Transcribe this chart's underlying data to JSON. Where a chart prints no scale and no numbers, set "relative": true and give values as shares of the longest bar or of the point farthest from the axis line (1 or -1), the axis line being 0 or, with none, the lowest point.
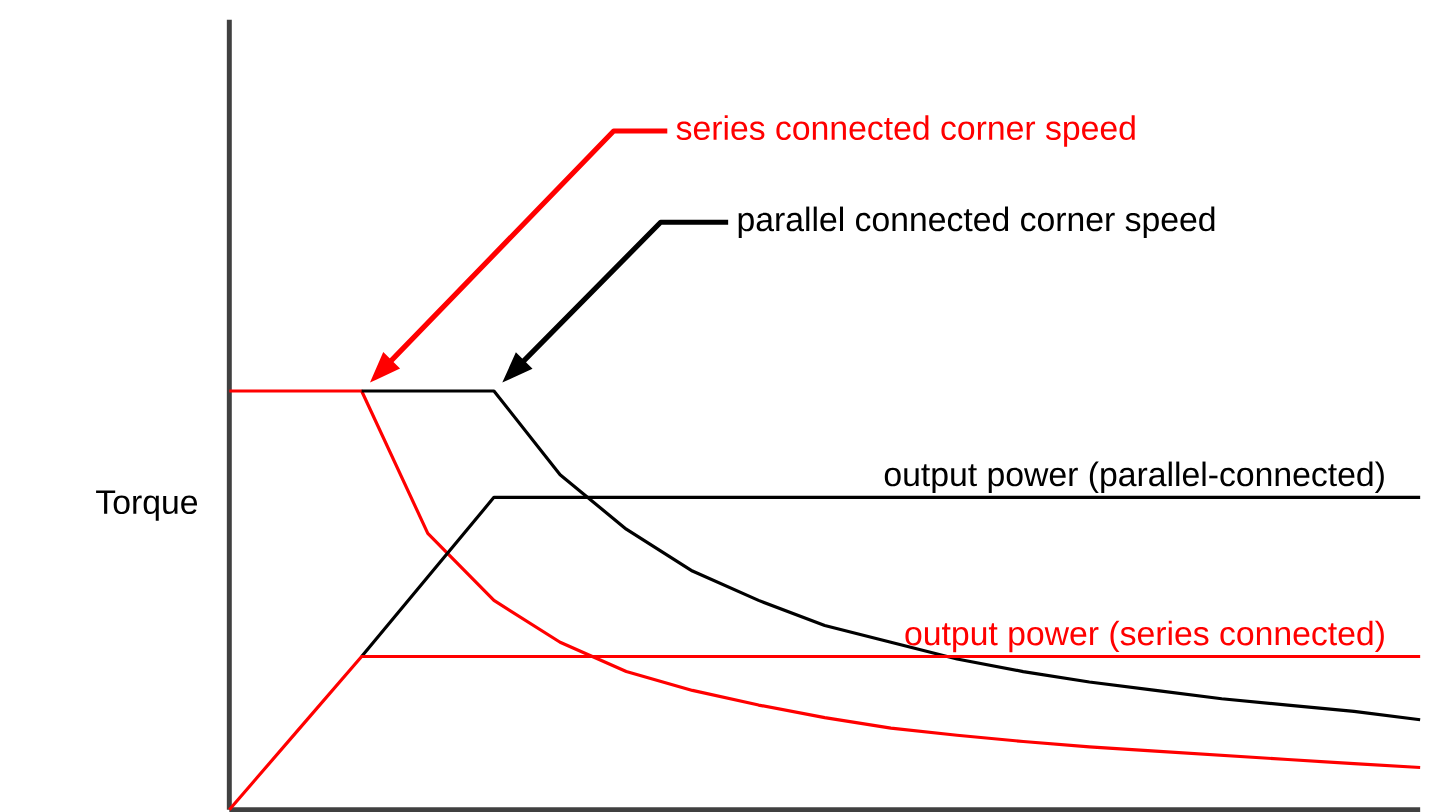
{
  "chart_data": {
    "type": "line",
    "relative": true,
    "ylabel": "Torque",
    "legend": false,
    "marker": "none",
    "line_style": "solid",
    "categories": [
      null,
      null,
      null,
      null,
      null,
      null,
      null,
      null,
      null,
      null,
      null,
      null,
      null,
      null,
      null,
      null,
      null,
      null,
      null
    ],
    "series": [
      {
        "color": "#ff0000",
        "values": [
          1,
          1,
          1,
          0.66,
          0.5,
          0.4,
          0.33,
          0.285,
          0.25,
          0.22,
          0.195,
          0.178,
          0.163,
          0.15,
          0.14,
          0.13,
          0.12,
          0.11,
          0.101
        ]
      },
      {
        "color": "#000000",
        "values": [
          null,
          null,
          1,
          1,
          1,
          0.8,
          0.67,
          0.57,
          0.5,
          0.44,
          0.4,
          0.36,
          0.33,
          0.305,
          0.285,
          0.265,
          0.25,
          0.235,
          0.215
        ]
      },
      {
        "name": "output power (parallel-connected)",
        "color": "#000000",
        "values": [
          null,
          null,
          0.366,
          0.556,
          0.746,
          0.746,
          0.746,
          0.746,
          0.746,
          0.746,
          0.746,
          0.746,
          0.746,
          0.746,
          0.746,
          0.746,
          0.746,
          0.746,
          0.746
        ]
      },
      {
        "name": "output power (series connected)",
        "color": "#ff0000",
        "values": [
          0,
          0.183,
          0.366,
          0.366,
          0.366,
          0.366,
          0.366,
          0.366,
          0.366,
          0.366,
          0.366,
          0.366,
          0.366,
          0.366,
          0.366,
          0.366,
          0.366,
          0.366,
          0.366
        ]
      }
    ],
    "annotations": [
      "series connected corner speed",
      "parallel connected corner speed"
    ]
  }
}
